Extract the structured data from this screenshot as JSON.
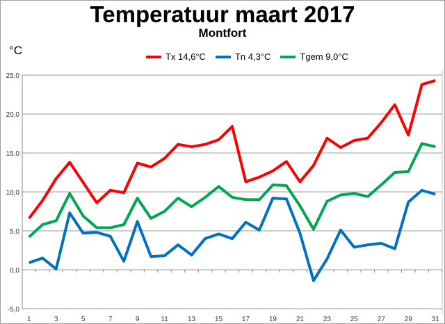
{
  "chart_data": {
    "type": "line",
    "title": "Temperatuur maart 2017",
    "subtitle": "Montfort",
    "ylabel": "°C",
    "xlabel": "",
    "ylim": [
      -5,
      25
    ],
    "yticks": [
      "25,0",
      "20,0",
      "15,0",
      "10,0",
      "5,0",
      "0,0",
      "-5,0"
    ],
    "ytick_values": [
      25,
      20,
      15,
      10,
      5,
      0,
      -5
    ],
    "x": [
      1,
      2,
      3,
      4,
      5,
      6,
      7,
      8,
      9,
      10,
      11,
      12,
      13,
      14,
      15,
      16,
      17,
      18,
      19,
      20,
      21,
      22,
      23,
      24,
      25,
      26,
      27,
      28,
      29,
      30,
      31
    ],
    "xtick_labels": [
      "1",
      "3",
      "5",
      "7",
      "9",
      "11",
      "13",
      "15",
      "17",
      "19",
      "21",
      "23",
      "25",
      "27",
      "29",
      "31"
    ],
    "grid": true,
    "legend_position": "top",
    "series": [
      {
        "name": "Tx 14,6°C",
        "color": "#ff0000",
        "values": [
          6.6,
          8.9,
          11.7,
          13.8,
          11.2,
          8.6,
          10.2,
          9.9,
          13.7,
          13.2,
          14.3,
          16.1,
          15.8,
          16.1,
          16.7,
          18.4,
          11.3,
          11.9,
          12.7,
          13.9,
          11.3,
          13.4,
          16.9,
          15.7,
          16.6,
          16.9,
          18.9,
          21.2,
          17.3,
          23.8,
          24.3
        ]
      },
      {
        "name": "Tn 4,3°C",
        "color": "#0070c0",
        "values": [
          0.9,
          1.5,
          0.1,
          7.3,
          4.7,
          4.8,
          4.3,
          1.1,
          6.2,
          1.7,
          1.8,
          3.2,
          1.9,
          4.0,
          4.6,
          4.0,
          6.1,
          5.1,
          9.2,
          9.1,
          4.7,
          -1.4,
          1.4,
          5.1,
          2.9,
          3.2,
          3.4,
          2.7,
          8.7,
          10.2,
          9.7
        ]
      },
      {
        "name": "Tgem 9,0°C",
        "color": "#00a651",
        "values": [
          4.2,
          5.8,
          6.3,
          9.8,
          6.9,
          5.4,
          5.4,
          5.8,
          9.2,
          6.6,
          7.5,
          9.2,
          8.1,
          9.3,
          10.7,
          9.3,
          9.0,
          9.0,
          10.9,
          10.8,
          8.2,
          5.2,
          8.8,
          9.6,
          9.8,
          9.4,
          10.9,
          12.5,
          12.6,
          16.2,
          15.8
        ]
      }
    ]
  }
}
